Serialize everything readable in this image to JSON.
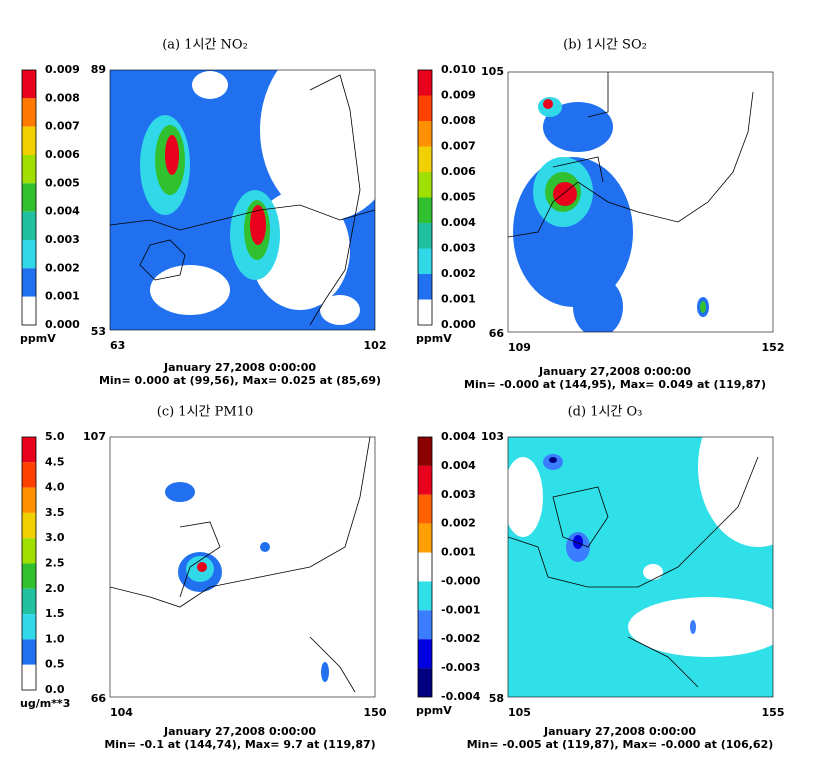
{
  "panels": [
    {
      "caption": "(a) 1시간 NO₂",
      "colorbar": [
        "0.009",
        "0.008",
        "0.007",
        "0.006",
        "0.005",
        "0.004",
        "0.003",
        "0.002",
        "0.001",
        "0.000"
      ],
      "colors": [
        "#e8001c",
        "#ff7a00",
        "#f0d000",
        "#a0e000",
        "#30c030",
        "#20c0a0",
        "#30d8e8",
        "#2070f0",
        "#ffffff"
      ],
      "unit": "ppmV",
      "corners": {
        "top": "89",
        "bottom": "53",
        "left": "63",
        "right": "102"
      },
      "date": "January 27,2008 0:00:00",
      "stats": "Min=  0.000 at (99,56), Max=  0.025 at (85,69)"
    },
    {
      "caption": "(b) 1시간 SO₂",
      "colorbar": [
        "0.010",
        "0.009",
        "0.008",
        "0.007",
        "0.006",
        "0.005",
        "0.004",
        "0.003",
        "0.002",
        "0.001",
        "0.000"
      ],
      "colors": [
        "#e8001c",
        "#ff4000",
        "#ff9000",
        "#f0d000",
        "#a0e000",
        "#30c030",
        "#20c0a0",
        "#30d8e8",
        "#2070f0",
        "#ffffff"
      ],
      "unit": "ppmV",
      "corners": {
        "top": "105",
        "bottom": "66",
        "left": "109",
        "right": "152"
      },
      "date": "January 27,2008 0:00:00",
      "stats": "Min= -0.000 at (144,95), Max=  0.049 at (119,87)"
    },
    {
      "caption": "(c) 1시간 PM10",
      "colorbar": [
        "5.0",
        "4.5",
        "4.0",
        "3.5",
        "3.0",
        "2.5",
        "2.0",
        "1.5",
        "1.0",
        "0.5",
        "0.0"
      ],
      "colors": [
        "#e8001c",
        "#ff4000",
        "#ff9000",
        "#f0d000",
        "#a0e000",
        "#30c030",
        "#20c0a0",
        "#30d8e8",
        "#2070f0",
        "#ffffff"
      ],
      "unit": "ug/m**3",
      "corners": {
        "top": "107",
        "bottom": "66",
        "left": "104",
        "right": "150"
      },
      "date": "January 27,2008 0:00:00",
      "stats": "Min=  -0.1 at (144,74), Max=   9.7 at (119,87)"
    },
    {
      "caption": "(d) 1시간 O₃",
      "colorbar": [
        "0.004",
        "0.004",
        "0.003",
        "0.002",
        "0.001",
        "-0.000",
        "-0.001",
        "-0.002",
        "-0.003",
        "-0.004"
      ],
      "colors": [
        "#8b0000",
        "#e8001c",
        "#ff6000",
        "#ffa000",
        "#ffffff",
        "#30e0e8",
        "#3a7dff",
        "#0000e0",
        "#000080"
      ],
      "unit": "ppmV",
      "corners": {
        "top": "103",
        "bottom": "58",
        "left": "105",
        "right": "155"
      },
      "date": "January 27,2008 0:00:00",
      "stats": "Min= -0.005 at (119,87), Max= -0.000 at (106,62)"
    }
  ]
}
